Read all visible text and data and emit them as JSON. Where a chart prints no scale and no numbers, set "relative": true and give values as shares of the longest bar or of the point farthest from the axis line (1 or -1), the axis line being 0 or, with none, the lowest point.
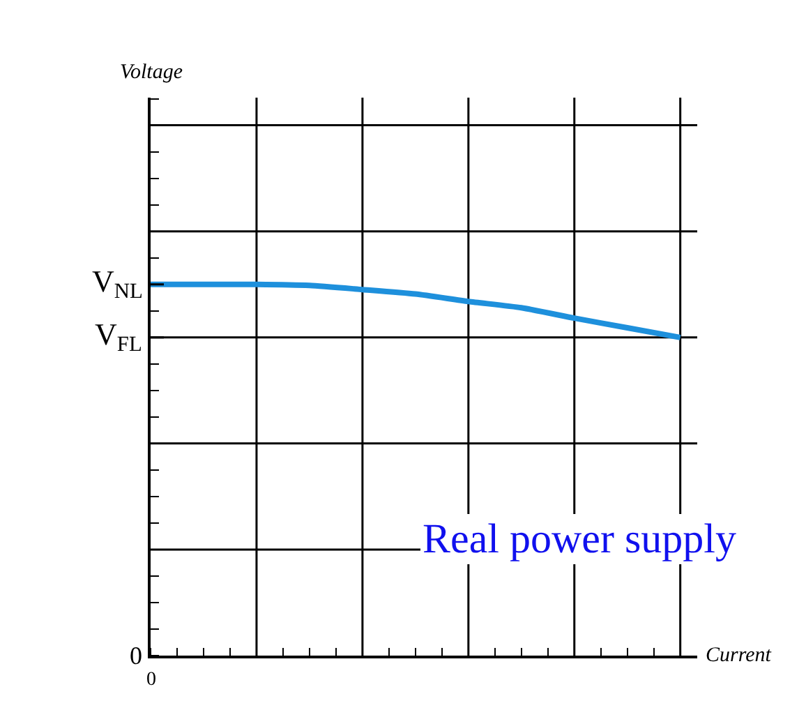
{
  "chart_data": {
    "type": "line",
    "relative": true,
    "xlabel": "Current",
    "categories": [
      null,
      null,
      null,
      null,
      null,
      null,
      null,
      null,
      null,
      null,
      null
    ],
    "series": [
      {
        "color": "#1e90dc",
        "values": [
          1,
          1,
          1,
          0.997,
          0.986,
          0.974,
          0.954,
          0.937,
          0.909,
          0.883,
          0.857
        ]
      }
    ],
    "grid": true,
    "marker": "none",
    "line_style": "solid",
    "annotations": [
      "Voltage",
      "V$_{NL}$",
      "V$_{FL}$",
      "0",
      "0",
      "Real power supply"
    ]
  }
}
